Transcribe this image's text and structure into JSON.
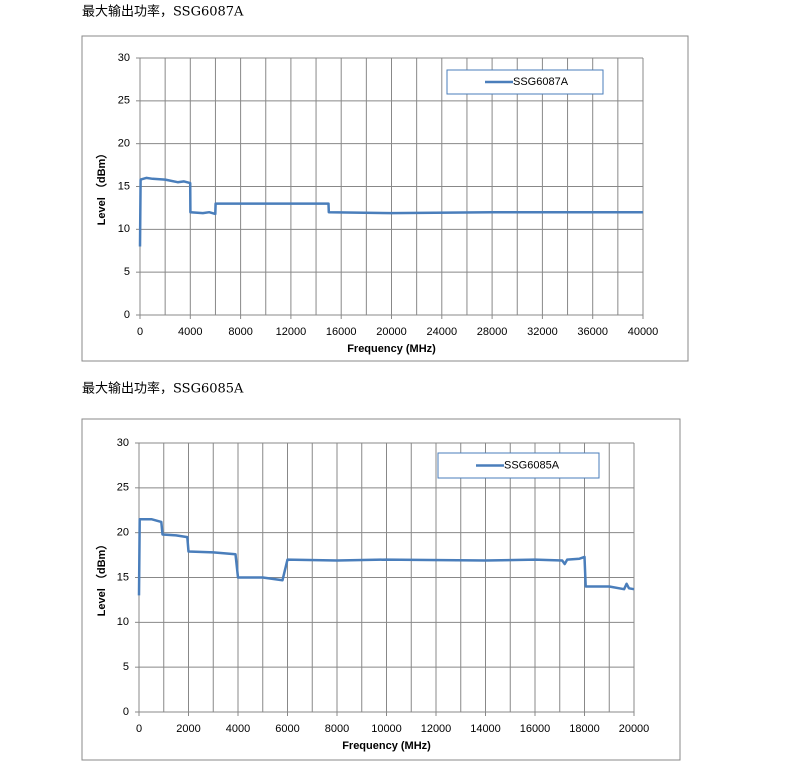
{
  "chart_data": [
    {
      "type": "line",
      "title": "最大输出功率，SSG6087A",
      "xlabel": "Frequency (MHz)",
      "ylabel": "Level （dBm）",
      "x": [
        0,
        50,
        500,
        1000,
        2000,
        3000,
        3500,
        3990,
        4010,
        5000,
        5500,
        5990,
        6010,
        10000,
        14990,
        15010,
        20000,
        28000,
        40000
      ],
      "series": [
        {
          "name": "SSG6087A",
          "color": "#4a7ebb",
          "values": [
            8,
            15.8,
            16,
            15.9,
            15.8,
            15.5,
            15.6,
            15.4,
            12,
            11.9,
            12,
            11.8,
            13,
            13,
            13,
            12,
            11.9,
            12,
            12
          ]
        }
      ],
      "xlim": [
        0,
        40000
      ],
      "xticks": [
        0,
        4000,
        8000,
        12000,
        16000,
        20000,
        24000,
        28000,
        32000,
        36000,
        40000
      ],
      "minor_xticks": [
        2000,
        6000,
        10000,
        14000,
        18000,
        22000,
        26000,
        30000,
        34000,
        38000
      ],
      "ylim": [
        0,
        30
      ],
      "yticks": [
        0,
        5,
        10,
        15,
        20,
        25,
        30
      ],
      "grid": true,
      "legend": "upper right"
    },
    {
      "type": "line",
      "title": "最大输出功率，SSG6085A",
      "xlabel": "Frequency (MHz)",
      "ylabel": "Level （dBm）",
      "x": [
        0,
        30,
        500,
        900,
        950,
        1500,
        1950,
        2000,
        3000,
        3900,
        4000,
        5000,
        5800,
        6000,
        8000,
        10000,
        14000,
        16000,
        17100,
        17200,
        17300,
        17800,
        18000,
        18050,
        19000,
        19600,
        19700,
        19800,
        20000
      ],
      "series": [
        {
          "name": "SSG6085A",
          "color": "#4a7ebb",
          "values": [
            13,
            21.5,
            21.5,
            21.2,
            19.8,
            19.7,
            19.5,
            17.9,
            17.8,
            17.6,
            15,
            15,
            14.7,
            17,
            16.9,
            17,
            16.9,
            17,
            16.9,
            16.5,
            17,
            17.1,
            17.3,
            14,
            14,
            13.7,
            14.3,
            13.8,
            13.7
          ]
        }
      ],
      "xlim": [
        0,
        20000
      ],
      "xticks": [
        0,
        2000,
        4000,
        6000,
        8000,
        10000,
        12000,
        14000,
        16000,
        18000,
        20000
      ],
      "minor_xticks": [
        1000,
        3000,
        5000,
        7000,
        9000,
        11000,
        13000,
        15000,
        17000,
        19000
      ],
      "ylim": [
        0,
        30
      ],
      "yticks": [
        0,
        5,
        10,
        15,
        20,
        25,
        30
      ],
      "grid": true,
      "legend": "upper right"
    }
  ]
}
